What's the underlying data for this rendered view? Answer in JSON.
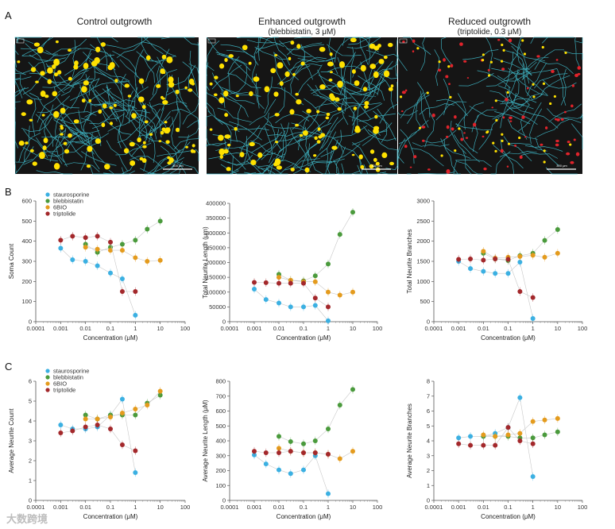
{
  "panel_labels": [
    "A",
    "B",
    "C"
  ],
  "images": [
    {
      "title": "Control outgrowth",
      "subtitle": "",
      "scale_bar": "300 μm",
      "color": "#ffe100",
      "cell_density": "high"
    },
    {
      "title": "Enhanced outgrowth",
      "subtitle": "(blebbistatin, 3 μM)",
      "scale_bar": "300 μm",
      "color": "#ffe100",
      "cell_density": "high"
    },
    {
      "title": "Reduced outgrowth",
      "subtitle": "(triptolide, 0.3 μM)",
      "scale_bar": "300 μm",
      "color": "#e0232b",
      "cell_density": "low"
    }
  ],
  "legend": [
    {
      "name": "staurosporine",
      "color": "#3bb0e2"
    },
    {
      "name": "blebbistatin",
      "color": "#4a9a3c"
    },
    {
      "name": "6BIO",
      "color": "#e49b1d"
    },
    {
      "name": "triptolide",
      "color": "#a3282b"
    }
  ],
  "watermark": "大数跨境",
  "chart_data": [
    {
      "id": "B1",
      "type": "scatter",
      "xscale": "log",
      "xlabel": "Concentration (μM)",
      "ylabel": "Soma Count",
      "xticks": [
        "0.0001",
        "0.001",
        "0.01",
        "0.1",
        "1",
        "10",
        "100"
      ],
      "ylim": [
        0,
        600
      ],
      "yticks": [
        "0",
        "100",
        "200",
        "300",
        "400",
        "500",
        "600"
      ],
      "series": [
        {
          "name": "staurosporine",
          "x": [
            0.001,
            0.003,
            0.01,
            0.03,
            0.1,
            0.3,
            1
          ],
          "y": [
            365,
            308,
            300,
            278,
            242,
            213,
            32
          ]
        },
        {
          "name": "blebbistatin",
          "x": [
            0.01,
            0.03,
            0.1,
            0.3,
            1,
            3,
            10
          ],
          "y": [
            385,
            345,
            370,
            385,
            405,
            460,
            500
          ]
        },
        {
          "name": "6BIO",
          "x": [
            0.01,
            0.03,
            0.1,
            0.3,
            1,
            3,
            10
          ],
          "y": [
            370,
            360,
            355,
            355,
            318,
            300,
            305
          ]
        },
        {
          "name": "triptolide",
          "x": [
            0.001,
            0.003,
            0.01,
            0.03,
            0.1,
            0.3,
            1
          ],
          "y": [
            405,
            425,
            418,
            425,
            395,
            150,
            150
          ]
        }
      ]
    },
    {
      "id": "B2",
      "type": "scatter",
      "xscale": "log",
      "xlabel": "Concentration (μM)",
      "ylabel": "Total Neurite Length (μm)",
      "xticks": [
        "0.0001",
        "0.001",
        "0.01",
        "0.1",
        "1",
        "10",
        "100"
      ],
      "ylim": [
        0,
        400000
      ],
      "yticks": [
        "0",
        "50000",
        "100000",
        "150000",
        "200000",
        "250000",
        "300000",
        "350000",
        "400000"
      ],
      "series": [
        {
          "name": "staurosporine",
          "x": [
            0.001,
            0.003,
            0.01,
            0.03,
            0.1,
            0.3,
            1
          ],
          "y": [
            110000,
            75000,
            63000,
            50000,
            50000,
            55000,
            3000
          ]
        },
        {
          "name": "blebbistatin",
          "x": [
            0.01,
            0.03,
            0.1,
            0.3,
            1,
            3,
            10
          ],
          "y": [
            160000,
            140000,
            138000,
            155000,
            195000,
            295000,
            370000
          ]
        },
        {
          "name": "6BIO",
          "x": [
            0.01,
            0.03,
            0.1,
            0.3,
            1,
            3,
            10
          ],
          "y": [
            150000,
            140000,
            135000,
            135000,
            100000,
            90000,
            100000
          ]
        },
        {
          "name": "triptolide",
          "x": [
            0.001,
            0.003,
            0.01,
            0.03,
            0.1,
            0.3,
            1
          ],
          "y": [
            133000,
            132000,
            130000,
            130000,
            130000,
            80000,
            50000
          ]
        }
      ]
    },
    {
      "id": "B3",
      "type": "scatter",
      "xscale": "log",
      "xlabel": "Concentration (μM)",
      "ylabel": "Total Neurite Branches",
      "xticks": [
        "0.0001",
        "0.001",
        "0.01",
        "0.1",
        "1",
        "10",
        "100"
      ],
      "ylim": [
        0,
        3000
      ],
      "yticks": [
        "0",
        "500",
        "1000",
        "1500",
        "2000",
        "2500",
        "3000"
      ],
      "series": [
        {
          "name": "staurosporine",
          "x": [
            0.001,
            0.003,
            0.01,
            0.03,
            0.1,
            0.3,
            1
          ],
          "y": [
            1500,
            1320,
            1250,
            1200,
            1200,
            1480,
            80
          ]
        },
        {
          "name": "blebbistatin",
          "x": [
            0.01,
            0.03,
            0.1,
            0.3,
            1,
            3,
            10
          ],
          "y": [
            1700,
            1560,
            1520,
            1640,
            1700,
            2020,
            2290
          ]
        },
        {
          "name": "6BIO",
          "x": [
            0.01,
            0.03,
            0.1,
            0.3,
            1,
            3,
            10
          ],
          "y": [
            1750,
            1580,
            1600,
            1620,
            1650,
            1600,
            1700
          ]
        },
        {
          "name": "triptolide",
          "x": [
            0.001,
            0.003,
            0.01,
            0.03,
            0.1,
            0.3,
            1
          ],
          "y": [
            1550,
            1560,
            1530,
            1560,
            1550,
            750,
            600
          ]
        }
      ]
    },
    {
      "id": "C1",
      "type": "scatter",
      "xscale": "log",
      "xlabel": "Concentration (μM)",
      "ylabel": "Average Neurite Count",
      "xticks": [
        "0.0001",
        "0.001",
        "0.01",
        "0.1",
        "1",
        "10",
        "100"
      ],
      "ylim": [
        0,
        6
      ],
      "yticks": [
        "0",
        "1",
        "2",
        "3",
        "4",
        "5",
        "6"
      ],
      "series": [
        {
          "name": "staurosporine",
          "x": [
            0.001,
            0.003,
            0.01,
            0.03,
            0.1,
            0.3,
            1
          ],
          "y": [
            3.8,
            3.6,
            3.6,
            3.7,
            4.3,
            5.1,
            1.4
          ]
        },
        {
          "name": "blebbistatin",
          "x": [
            0.01,
            0.03,
            0.1,
            0.3,
            1,
            3,
            10
          ],
          "y": [
            4.3,
            4.1,
            4.3,
            4.3,
            4.3,
            4.9,
            5.3
          ]
        },
        {
          "name": "6BIO",
          "x": [
            0.01,
            0.03,
            0.1,
            0.3,
            1,
            3,
            10
          ],
          "y": [
            4.1,
            4.1,
            4.2,
            4.4,
            4.6,
            4.8,
            5.5
          ]
        },
        {
          "name": "triptolide",
          "x": [
            0.001,
            0.003,
            0.01,
            0.03,
            0.1,
            0.3,
            1
          ],
          "y": [
            3.4,
            3.5,
            3.7,
            3.8,
            3.6,
            2.8,
            2.5
          ]
        }
      ]
    },
    {
      "id": "C2",
      "type": "scatter",
      "xscale": "log",
      "xlabel": "Concentration (μM)",
      "ylabel": "Average Neurite Length (μM)",
      "xticks": [
        "0.0001",
        "0.001",
        "0.01",
        "0.1",
        "1",
        "10",
        "100"
      ],
      "ylim": [
        0,
        800
      ],
      "yticks": [
        "0",
        "100",
        "200",
        "300",
        "400",
        "500",
        "600",
        "700",
        "800"
      ],
      "series": [
        {
          "name": "staurosporine",
          "x": [
            0.001,
            0.003,
            0.01,
            0.03,
            0.1,
            0.3,
            1
          ],
          "y": [
            305,
            245,
            205,
            180,
            205,
            300,
            45
          ]
        },
        {
          "name": "blebbistatin",
          "x": [
            0.01,
            0.03,
            0.1,
            0.3,
            1,
            3,
            10
          ],
          "y": [
            430,
            395,
            380,
            400,
            480,
            640,
            745
          ]
        },
        {
          "name": "6BIO",
          "x": [
            0.01,
            0.03,
            0.1,
            0.3,
            1,
            3,
            10
          ],
          "y": [
            350,
            330,
            320,
            320,
            310,
            280,
            330
          ]
        },
        {
          "name": "triptolide",
          "x": [
            0.001,
            0.003,
            0.01,
            0.03,
            0.1,
            0.3,
            1
          ],
          "y": [
            330,
            320,
            320,
            330,
            320,
            320,
            310
          ]
        }
      ]
    },
    {
      "id": "C3",
      "type": "scatter",
      "xscale": "log",
      "xlabel": "Concentration (μM)",
      "ylabel": "Average Neurite Branches",
      "xticks": [
        "0.0001",
        "0.001",
        "0.01",
        "0.1",
        "1",
        "10",
        "100"
      ],
      "ylim": [
        0,
        8
      ],
      "yticks": [
        "0",
        "1",
        "2",
        "3",
        "4",
        "5",
        "6",
        "7",
        "8"
      ],
      "series": [
        {
          "name": "staurosporine",
          "x": [
            0.001,
            0.003,
            0.01,
            0.03,
            0.1,
            0.3,
            1
          ],
          "y": [
            4.2,
            4.3,
            4.3,
            4.5,
            4.9,
            6.9,
            1.6
          ]
        },
        {
          "name": "blebbistatin",
          "x": [
            0.01,
            0.03,
            0.1,
            0.3,
            1,
            3,
            10
          ],
          "y": [
            4.3,
            4.3,
            4.3,
            4.2,
            4.2,
            4.4,
            4.6
          ]
        },
        {
          "name": "6BIO",
          "x": [
            0.01,
            0.03,
            0.1,
            0.3,
            1,
            3,
            10
          ],
          "y": [
            4.4,
            4.3,
            4.4,
            4.5,
            5.3,
            5.4,
            5.5
          ]
        },
        {
          "name": "triptolide",
          "x": [
            0.001,
            0.003,
            0.01,
            0.03,
            0.1,
            0.3,
            1
          ],
          "y": [
            3.8,
            3.7,
            3.7,
            3.7,
            4.9,
            4.0,
            3.8
          ]
        }
      ]
    }
  ]
}
